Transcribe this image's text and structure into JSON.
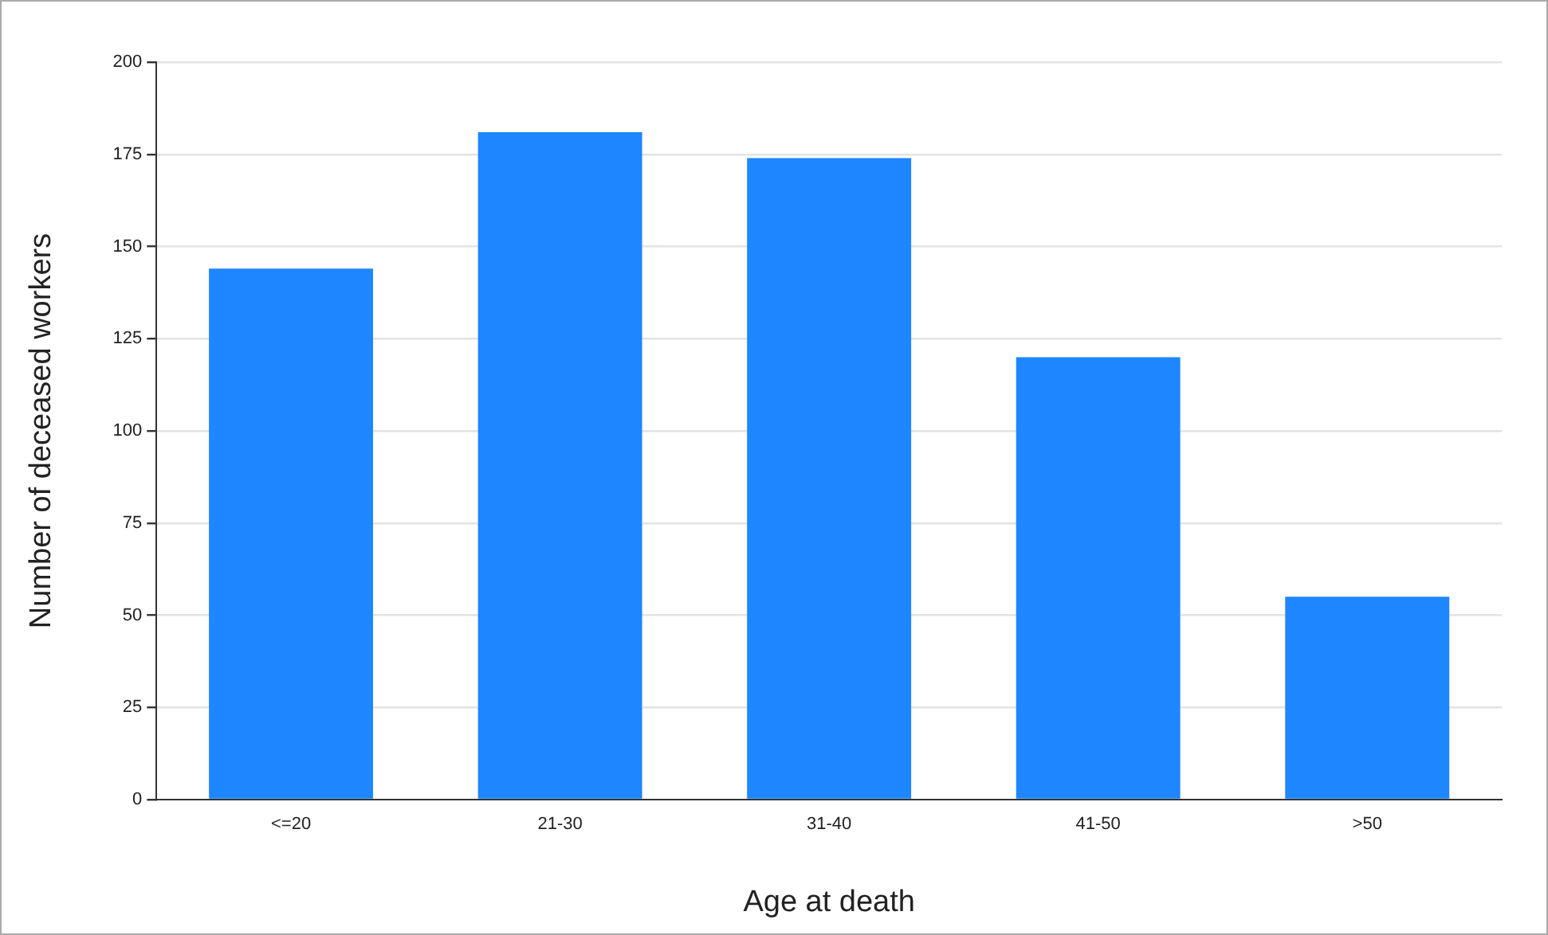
{
  "chart_data": {
    "type": "bar",
    "xlabel": "Age at death",
    "ylabel": "Number of deceased workers",
    "categories": [
      "<=20",
      "21-30",
      "31-40",
      "41-50",
      ">50"
    ],
    "values": [
      144,
      181,
      174,
      120,
      55
    ],
    "color": "#1e86ff",
    "ylim": [
      0,
      200
    ],
    "yticks": [
      0,
      25,
      50,
      75,
      100,
      125,
      150,
      175,
      200
    ],
    "grid": "y",
    "legend": false
  }
}
